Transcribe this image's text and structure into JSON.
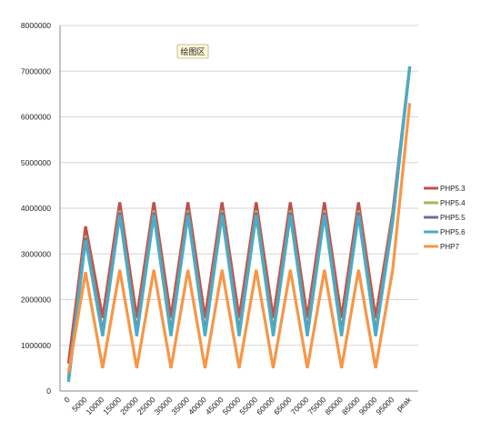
{
  "chart_data": {
    "type": "line",
    "categories": [
      "0",
      "5000",
      "10000",
      "15000",
      "20000",
      "25000",
      "30000",
      "35000",
      "40000",
      "45000",
      "50000",
      "55000",
      "60000",
      "65000",
      "70000",
      "75000",
      "80000",
      "85000",
      "90000",
      "95000",
      "peak"
    ],
    "ylim": [
      0,
      8000000
    ],
    "yticks": [
      "0",
      "1000000",
      "2000000",
      "3000000",
      "4000000",
      "5000000",
      "6000000",
      "7000000",
      "8000000"
    ],
    "grid": true,
    "legend_position": "right",
    "plot_area_label": "绘图区",
    "series": [
      {
        "name": "PHP5.3",
        "color": "#c0504d",
        "values": [
          600000,
          3600000,
          1600000,
          4130000,
          1600000,
          4130000,
          1600000,
          4130000,
          1600000,
          4130000,
          1600000,
          4130000,
          1600000,
          4130000,
          1600000,
          4130000,
          1600000,
          4130000,
          1600000,
          3900000,
          7100000
        ]
      },
      {
        "name": "PHP5.4",
        "color": "#9bbb59",
        "values": [
          300000,
          3400000,
          1300000,
          3950000,
          1300000,
          3950000,
          1300000,
          3950000,
          1300000,
          3950000,
          1300000,
          3950000,
          1300000,
          3950000,
          1300000,
          3950000,
          1300000,
          3950000,
          1300000,
          3800000,
          7100000
        ]
      },
      {
        "name": "PHP5.5",
        "color": "#8064a2",
        "values": [
          250000,
          3350000,
          1250000,
          3900000,
          1250000,
          3900000,
          1250000,
          3900000,
          1250000,
          3900000,
          1250000,
          3900000,
          1250000,
          3900000,
          1250000,
          3900000,
          1250000,
          3900000,
          1250000,
          3750000,
          7100000
        ]
      },
      {
        "name": "PHP5.6",
        "color": "#4bacc6",
        "values": [
          200000,
          3300000,
          1200000,
          3850000,
          1200000,
          3850000,
          1200000,
          3850000,
          1200000,
          3850000,
          1200000,
          3850000,
          1200000,
          3850000,
          1200000,
          3850000,
          1200000,
          3850000,
          1200000,
          3700000,
          7100000
        ]
      },
      {
        "name": "PHP7",
        "color": "#f79646",
        "values": [
          400000,
          2600000,
          500000,
          2650000,
          500000,
          2650000,
          500000,
          2650000,
          500000,
          2650000,
          500000,
          2650000,
          500000,
          2650000,
          500000,
          2650000,
          500000,
          2650000,
          500000,
          2650000,
          6300000
        ]
      }
    ]
  }
}
